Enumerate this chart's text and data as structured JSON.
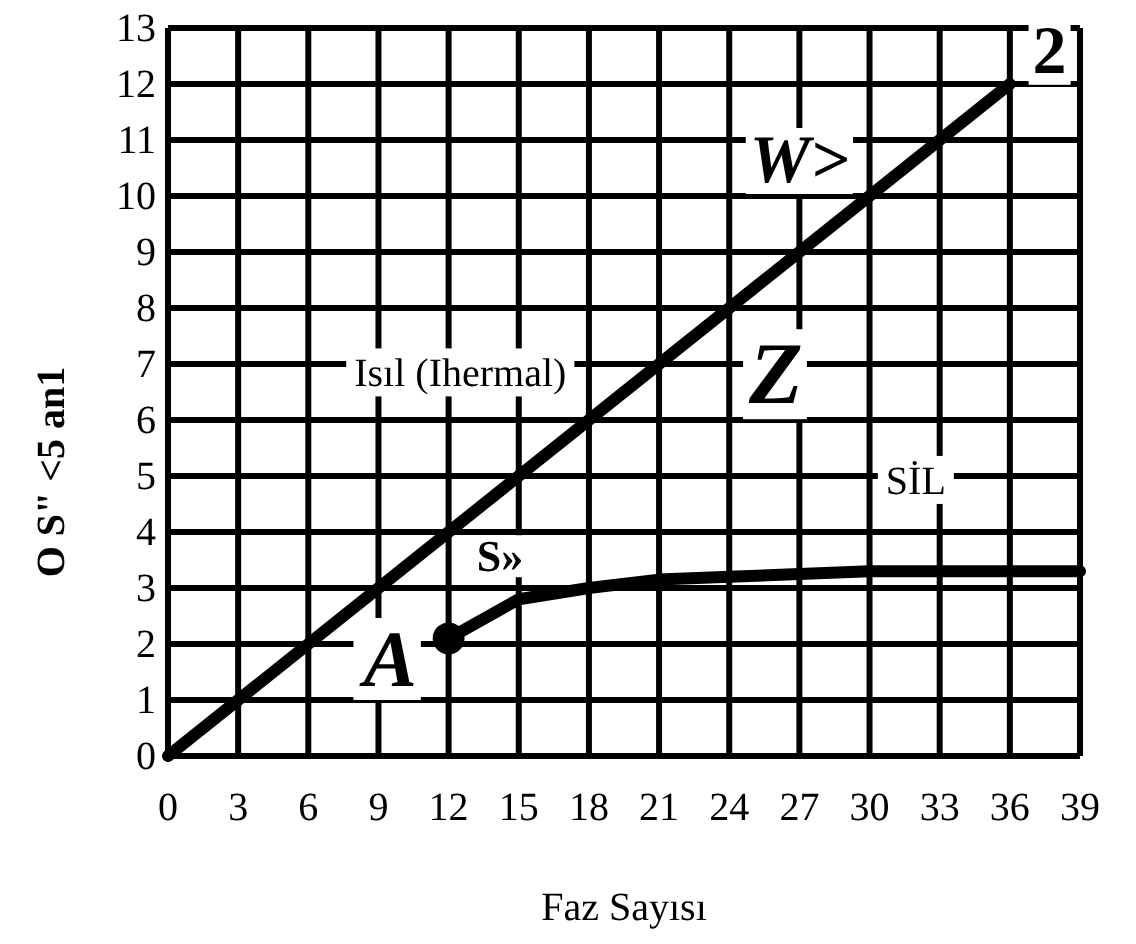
{
  "chart_data": {
    "type": "line",
    "xlabel": "Faz Sayısı",
    "ylabel": "O S\" <5 an1",
    "xlim": [
      0,
      39
    ],
    "xticks": [
      0,
      3,
      6,
      9,
      12,
      15,
      18,
      21,
      24,
      27,
      30,
      33,
      36,
      39
    ],
    "ylim": [
      0,
      13
    ],
    "yticks": [
      0,
      1,
      2,
      3,
      4,
      5,
      6,
      7,
      8,
      9,
      10,
      11,
      12,
      13
    ],
    "grid": true,
    "line_style": "solid",
    "marker": "none",
    "series": [
      {
        "name": "Isıl (Ihermal)",
        "color": "#000000",
        "x": [
          0,
          3,
          12,
          15,
          24,
          27,
          30,
          36
        ],
        "values": [
          0,
          1,
          4,
          5,
          8,
          9,
          10,
          12
        ]
      },
      {
        "name": "SİL",
        "color": "#000000",
        "x": [
          12,
          15,
          18,
          21,
          24,
          27,
          30,
          33,
          36,
          39
        ],
        "values": [
          2.1,
          2.8,
          3,
          3.15,
          3.2,
          3.25,
          3.3,
          3.3,
          3.3,
          3.3
        ]
      },
      {
        "type": "scatter",
        "marker": "circle",
        "color": "#000000",
        "x": [
          12
        ],
        "values": [
          2.1
        ]
      }
    ],
    "annotations": [
      "A",
      "Z",
      "W>",
      "2",
      "S»"
    ]
  }
}
